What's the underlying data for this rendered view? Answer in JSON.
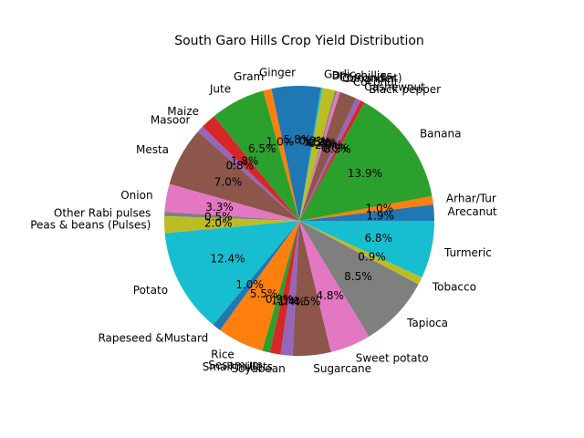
{
  "chart_data": {
    "type": "pie",
    "title": "South Garo Hills Crop Yield Distribution",
    "start_angle_deg": 0,
    "direction": "counterclockwise",
    "autopct_format": "%.1f%%",
    "colors": [
      "#1f77b4",
      "#ff7f0e",
      "#2ca02c",
      "#d62728",
      "#9467bd",
      "#8c564b",
      "#e377c2",
      "#7f7f7f",
      "#bcbd22",
      "#17becf"
    ],
    "slices": [
      {
        "label": "Arecanut",
        "value": 1.9,
        "pct_text": "1.9%"
      },
      {
        "label": "Arhar/Tur",
        "value": 1.0,
        "pct_text": "1.0%"
      },
      {
        "label": "Banana",
        "value": 13.9,
        "pct_text": "13.9%"
      },
      {
        "label": "Black pepper",
        "value": 0.5,
        "pct_text": "0.5%"
      },
      {
        "label": "Cashewnut",
        "value": 0.6,
        "pct_text": "0.6%"
      },
      {
        "label": "Coconut",
        "value": 2.0,
        "pct_text": "2.0%"
      },
      {
        "label": "Coriander",
        "value": 0.4,
        "pct_text": "0.4%"
      },
      {
        "label": "Cotton(lint)",
        "value": 0.2,
        "pct_text": "0.2%"
      },
      {
        "label": "Dry chillies",
        "value": 1.5,
        "pct_text": "1.5%"
      },
      {
        "label": "Garlic",
        "value": 0.2,
        "pct_text": "0.2%"
      },
      {
        "label": "Ginger",
        "value": 5.8,
        "pct_text": "5.8%"
      },
      {
        "label": "Gram",
        "value": 1.0,
        "pct_text": "1.0%"
      },
      {
        "label": "Jute",
        "value": 6.5,
        "pct_text": "6.5%"
      },
      {
        "label": "Maize",
        "value": 1.8,
        "pct_text": "1.8%"
      },
      {
        "label": "Masoor",
        "value": 0.8,
        "pct_text": "0.8%"
      },
      {
        "label": "Mesta",
        "value": 7.0,
        "pct_text": "7.0%"
      },
      {
        "label": "Onion",
        "value": 3.3,
        "pct_text": "3.3%"
      },
      {
        "label": "Other Rabi pulses",
        "value": 0.5,
        "pct_text": "0.5%"
      },
      {
        "label": "Peas & beans (Pulses)",
        "value": 2.0,
        "pct_text": "2.0%"
      },
      {
        "label": "Potato",
        "value": 12.4,
        "pct_text": "12.4%"
      },
      {
        "label": "Rapeseed &Mustard",
        "value": 1.0,
        "pct_text": "1.0%"
      },
      {
        "label": "Rice",
        "value": 5.5,
        "pct_text": "5.5%"
      },
      {
        "label": "Sesamum",
        "value": 0.9,
        "pct_text": "0.9%"
      },
      {
        "label": "Small millets",
        "value": 1.3,
        "pct_text": "1.3%"
      },
      {
        "label": "Soyabean",
        "value": 1.4,
        "pct_text": "1.4%"
      },
      {
        "label": "Sugarcane",
        "value": 4.5,
        "pct_text": "4.5%"
      },
      {
        "label": "Sweet potato",
        "value": 4.8,
        "pct_text": "4.8%"
      },
      {
        "label": "Tapioca",
        "value": 8.5,
        "pct_text": "8.5%"
      },
      {
        "label": "Tobacco",
        "value": 0.9,
        "pct_text": "0.9%"
      },
      {
        "label": "Turmeric",
        "value": 6.8,
        "pct_text": "6.8%"
      }
    ]
  }
}
